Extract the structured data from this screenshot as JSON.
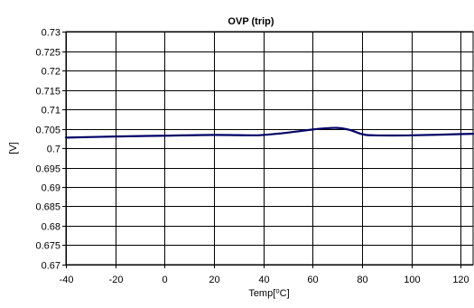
{
  "chart_data": {
    "type": "line",
    "title": "OVP (trip)",
    "xlabel": "Temp[⁰C]",
    "ylabel": "[V]",
    "xlim": [
      -40,
      125
    ],
    "ylim": [
      0.67,
      0.73
    ],
    "x_ticks": [
      -40,
      -20,
      0,
      20,
      40,
      60,
      80,
      100,
      120
    ],
    "x_tick_labels": [
      "-40",
      "-20",
      "0",
      "20",
      "40",
      "60",
      "80",
      "100",
      "120"
    ],
    "y_ticks": [
      0.67,
      0.675,
      0.68,
      0.685,
      0.69,
      0.695,
      0.7,
      0.705,
      0.71,
      0.715,
      0.72,
      0.725,
      0.73
    ],
    "y_tick_labels": [
      "0.67",
      "0.675",
      "0.68",
      "0.685",
      "0.69",
      "0.695",
      "0.7",
      "0.705",
      "0.71",
      "0.715",
      "0.72",
      "0.725",
      "0.73"
    ],
    "grid": true,
    "legend": "none",
    "series": [
      {
        "color": "#000066",
        "x": [
          -40,
          -20,
          0,
          20,
          35,
          40,
          50,
          60,
          65,
          70,
          75,
          80,
          85,
          100,
          125
        ],
        "y": [
          0.7027,
          0.703,
          0.7032,
          0.7034,
          0.7033,
          0.7034,
          0.704,
          0.7048,
          0.7051,
          0.7052,
          0.7047,
          0.7036,
          0.7033,
          0.7033,
          0.7037
        ]
      }
    ]
  }
}
